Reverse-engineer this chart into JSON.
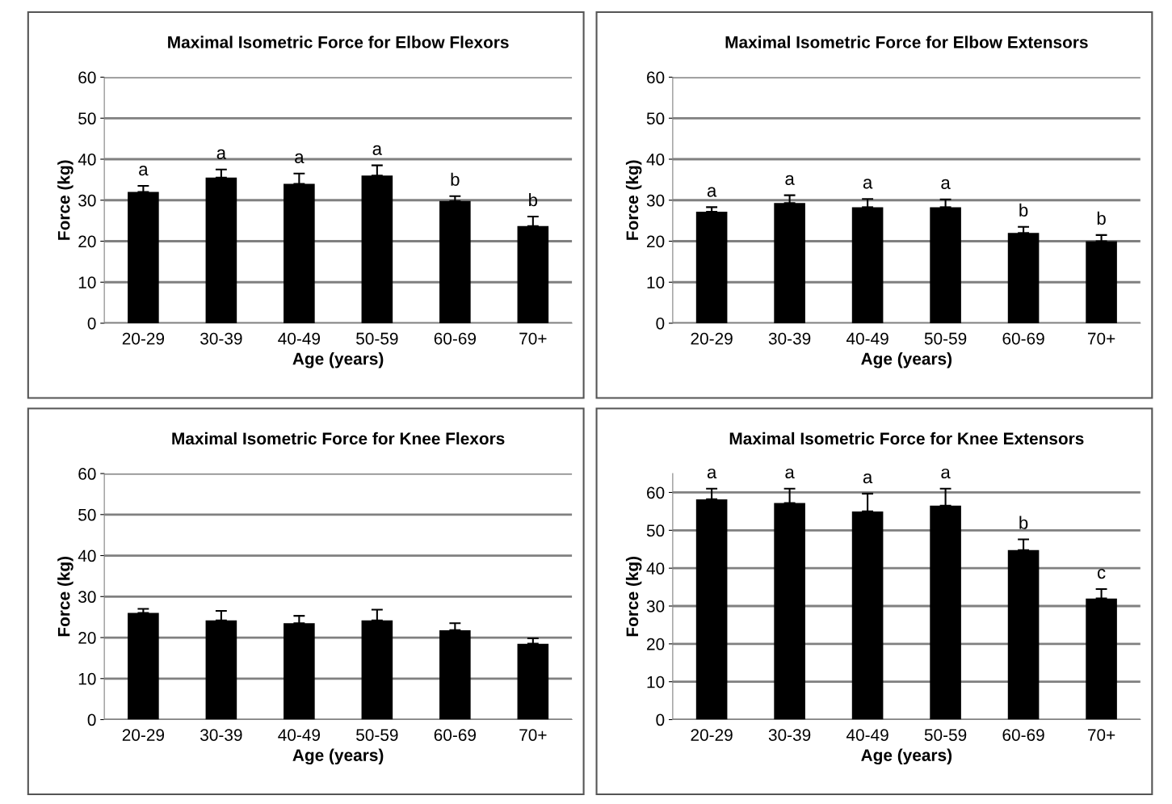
{
  "chart_data": [
    {
      "type": "bar",
      "title": "Maximal Isometric Force for Elbow Flexors",
      "xlabel": "Age (years)",
      "ylabel": "Force (kg)",
      "categories": [
        "20-29",
        "30-39",
        "40-49",
        "50-59",
        "60-69",
        "70+"
      ],
      "color": "#000000",
      "values": [
        32,
        35.5,
        34,
        36,
        29.8,
        23.7
      ],
      "errors": [
        [
          32,
          33.5
        ],
        [
          35.5,
          37.5
        ],
        [
          34,
          36.5
        ],
        [
          36,
          38.5
        ],
        [
          29.8,
          31
        ],
        [
          23.7,
          26
        ]
      ],
      "annotations": [
        {
          "text": "a",
          "x": "20-29",
          "y": 32
        },
        {
          "text": "a",
          "x": "30-39",
          "y": 35.5
        },
        {
          "text": "a",
          "x": "40-49",
          "y": 34
        },
        {
          "text": "a",
          "x": "50-59",
          "y": 36
        },
        {
          "text": "b",
          "x": "60-69",
          "y": 29.8
        },
        {
          "text": "b",
          "x": "70+",
          "y": 23.7
        }
      ],
      "ylim": [
        0,
        60
      ],
      "yticks": [
        0,
        10,
        20,
        30,
        40,
        50,
        60
      ],
      "grid": "y"
    },
    {
      "type": "bar",
      "title": "Maximal Isometric Force for Elbow Extensors",
      "xlabel": "Age (years)",
      "ylabel": "Force (kg)",
      "categories": [
        "20-29",
        "30-39",
        "40-49",
        "50-59",
        "60-69",
        "70+"
      ],
      "color": "#000000",
      "values": [
        27.2,
        29.3,
        28.3,
        28.3,
        22,
        20
      ],
      "errors": [
        [
          27.2,
          28.3
        ],
        [
          29.3,
          31.2
        ],
        [
          28.3,
          30.3
        ],
        [
          28.3,
          30.2
        ],
        [
          22,
          23.5
        ],
        [
          20,
          21.5
        ]
      ],
      "annotations": [
        {
          "text": "a",
          "x": "20-29",
          "y": 27.2
        },
        {
          "text": "a",
          "x": "30-39",
          "y": 29.3
        },
        {
          "text": "a",
          "x": "40-49",
          "y": 28.3
        },
        {
          "text": "a",
          "x": "50-59",
          "y": 28.3
        },
        {
          "text": "b",
          "x": "60-69",
          "y": 22
        },
        {
          "text": "b",
          "x": "70+",
          "y": 20
        }
      ],
      "ylim": [
        0,
        60
      ],
      "yticks": [
        0,
        10,
        20,
        30,
        40,
        50,
        60
      ],
      "grid": "y"
    },
    {
      "type": "bar",
      "title": "Maximal Isometric Force for Knee Flexors",
      "xlabel": "Age (years)",
      "ylabel": "Force (kg)",
      "categories": [
        "20-29",
        "30-39",
        "40-49",
        "50-59",
        "60-69",
        "70+"
      ],
      "color": "#000000",
      "values": [
        26,
        24.2,
        23.5,
        24.2,
        21.8,
        18.5
      ],
      "errors": [
        [
          26,
          27
        ],
        [
          24.2,
          26.5
        ],
        [
          23.5,
          25.3
        ],
        [
          24.2,
          26.8
        ],
        [
          21.8,
          23.5
        ],
        [
          18.5,
          19.8
        ]
      ],
      "ylim": [
        0,
        60
      ],
      "yticks": [
        0,
        10,
        20,
        30,
        40,
        50,
        60
      ],
      "grid": "y"
    },
    {
      "type": "bar",
      "title": "Maximal Isometric Force for Knee Extensors",
      "xlabel": "Age (years)",
      "ylabel": "Force (kg)",
      "categories": [
        "20-29",
        "30-39",
        "40-49",
        "50-59",
        "60-69",
        "70+"
      ],
      "color": "#000000",
      "values": [
        58.2,
        57.2,
        55,
        56.5,
        44.8,
        32
      ],
      "errors": [
        [
          58.2,
          61
        ],
        [
          57.2,
          61
        ],
        [
          55,
          59.7
        ],
        [
          56.5,
          61
        ],
        [
          44.8,
          47.6
        ],
        [
          32,
          34.5
        ]
      ],
      "annotations": [
        {
          "text": "a",
          "x": "20-29",
          "y": 58.2
        },
        {
          "text": "a",
          "x": "30-39",
          "y": 57.2
        },
        {
          "text": "a",
          "x": "40-49",
          "y": 55
        },
        {
          "text": "a",
          "x": "50-59",
          "y": 56.5
        },
        {
          "text": "b",
          "x": "60-69",
          "y": 44.8
        },
        {
          "text": "c",
          "x": "70+",
          "y": 32
        }
      ],
      "ylim": [
        0,
        65
      ],
      "yticks": [
        0,
        10,
        20,
        30,
        40,
        50,
        60
      ],
      "grid": "y"
    }
  ]
}
